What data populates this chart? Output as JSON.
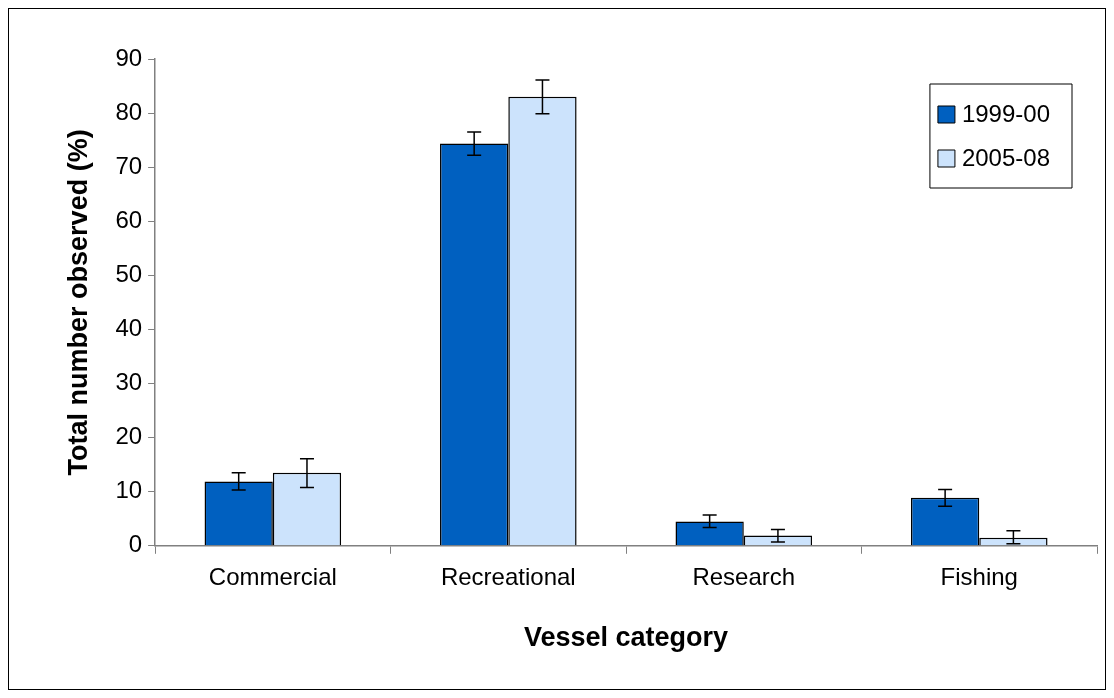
{
  "chart_data": {
    "type": "bar",
    "xlabel": "Vessel category",
    "ylabel": "Total number observed (%)",
    "categories": [
      "Commercial",
      "Recreational",
      "Research",
      "Fishing"
    ],
    "series": [
      {
        "name": "1999-00",
        "color": "#0060c0",
        "values": [
          11.9,
          74.4,
          4.5,
          8.9
        ],
        "errors": [
          [
            10.3,
            13.5
          ],
          [
            72.2,
            76.5
          ],
          [
            3.4,
            5.7
          ],
          [
            7.3,
            10.4
          ]
        ]
      },
      {
        "name": "2005-08",
        "color": "#cce3fc",
        "values": [
          13.5,
          83.0,
          1.9,
          1.5
        ],
        "errors": [
          [
            10.8,
            16.1
          ],
          [
            79.9,
            86.1
          ],
          [
            0.7,
            3.0
          ],
          [
            0.4,
            2.8
          ]
        ]
      }
    ],
    "ylim": [
      0,
      90
    ],
    "yticks": [
      0,
      10,
      20,
      30,
      40,
      50,
      60,
      70,
      80,
      90
    ],
    "grid": false,
    "legend": "top right"
  }
}
